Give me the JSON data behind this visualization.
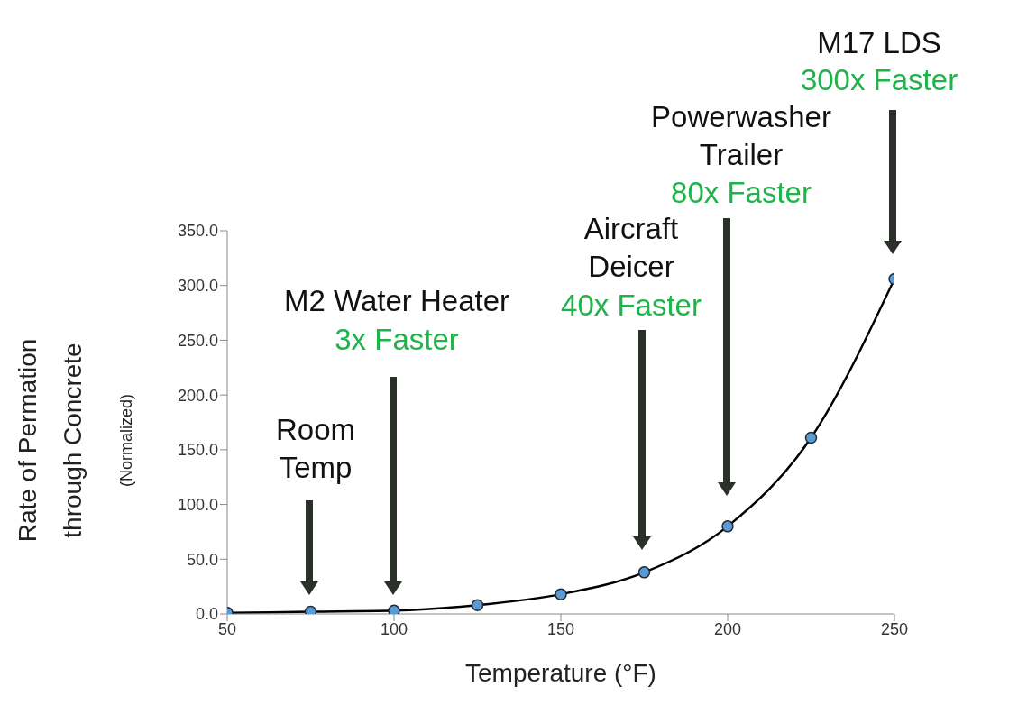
{
  "chart_data": {
    "type": "line",
    "xlabel": "Temperature (°F)",
    "ylabel": "Rate of Permation\nthrough Concrete\n(Normalized)",
    "x": [
      50,
      75,
      100,
      125,
      150,
      175,
      200,
      225,
      250
    ],
    "series": [
      {
        "color": "#000000",
        "values": [
          1,
          2,
          3,
          8,
          18,
          38,
          80,
          161,
          306
        ]
      }
    ],
    "marker": "circle",
    "line_style": "solid",
    "xlim": [
      50,
      250
    ],
    "xticks": [
      50,
      100,
      150,
      200,
      250
    ],
    "ylim": [
      0,
      350
    ],
    "yticks": [
      {
        "value": 0,
        "label": "0.0"
      },
      {
        "value": 50,
        "label": "50.0"
      },
      {
        "value": 100,
        "label": "100.0"
      },
      {
        "value": 150,
        "label": "150.0"
      },
      {
        "value": 200,
        "label": "200.0"
      },
      {
        "value": 250,
        "label": "250.0"
      },
      {
        "value": 300,
        "label": "300.0"
      },
      {
        "value": 350,
        "label": "350.0"
      }
    ],
    "annotations": [
      "Room Temp",
      "M2 Water Heater",
      "3x Faster",
      "Aircraft Deicer",
      "40x Faster",
      "Powerwasher Trailer",
      "80x Faster",
      "M17 LDS",
      "300x Faster"
    ]
  }
}
